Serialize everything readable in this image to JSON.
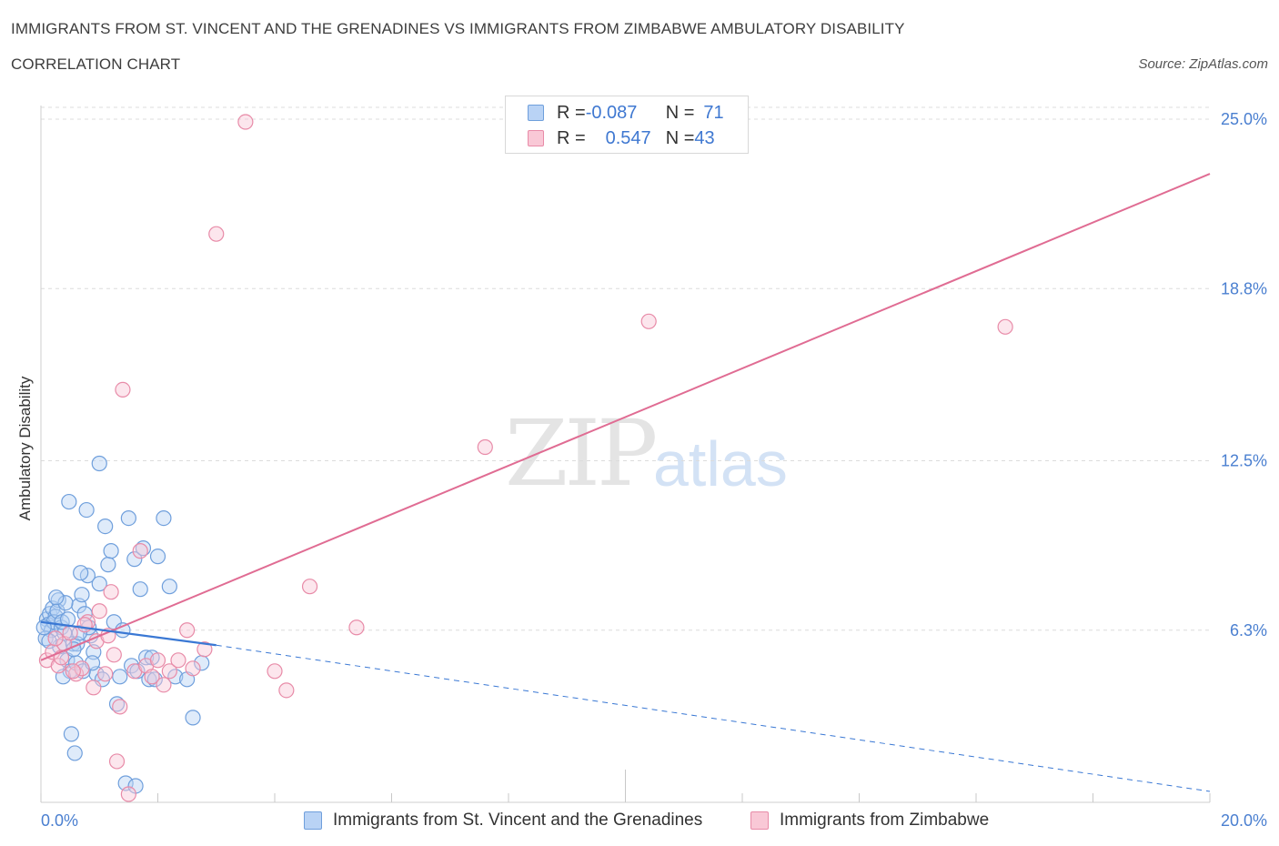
{
  "title_line1": "IMMIGRANTS FROM ST. VINCENT AND THE GRENADINES VS IMMIGRANTS FROM ZIMBABWE AMBULATORY DISABILITY",
  "title_line2": "CORRELATION CHART",
  "source": "Source: ZipAtlas.com",
  "watermark_zip": "ZIP",
  "watermark_atlas": "atlas",
  "legend": {
    "row1": {
      "r_label": "R = ",
      "r_value": "-0.087",
      "n_label": "N = ",
      "n_value": "71"
    },
    "row2": {
      "r_label": "R = ",
      "r_value": "0.547",
      "n_label": "N = ",
      "n_value": "43"
    }
  },
  "bottom_legend": {
    "series1": "Immigrants from St. Vincent and the Grenadines",
    "series2": "Immigrants from Zimbabwe"
  },
  "colors": {
    "blue": "#6f9fdc",
    "blue_fill": "#b9d3f5",
    "blue_line": "#3a78d4",
    "pink": "#e88ba8",
    "pink_fill": "#f9c8d6",
    "pink_line": "#e06c93",
    "tick_text": "#4a7fd0"
  },
  "chart_data": {
    "type": "scatter",
    "title": "IMMIGRANTS FROM ST. VINCENT AND THE GRENADINES VS IMMIGRANTS FROM ZIMBABWE AMBULATORY DISABILITY CORRELATION CHART",
    "xlabel": "",
    "ylabel": "Ambulatory Disability",
    "xlim": [
      0,
      20
    ],
    "ylim": [
      0,
      25.5
    ],
    "x_tick_labels": [
      "0.0%",
      "20.0%"
    ],
    "y_ticks": [
      6.3,
      12.5,
      18.8,
      25.0
    ],
    "y_tick_labels": [
      "6.3%",
      "12.5%",
      "18.8%",
      "25.0%"
    ],
    "grid": true,
    "legend_position": "top-center",
    "series": [
      {
        "name": "Immigrants from St. Vincent and the Grenadines",
        "color": "#6f9fdc",
        "R": -0.087,
        "N": 71,
        "trend": {
          "x": [
            0,
            3.0
          ],
          "y": [
            6.6,
            5.75
          ],
          "dashed_extension": {
            "x": [
              3.0,
              20
            ],
            "y": [
              5.75,
              0.4
            ]
          }
        },
        "points": [
          [
            0.1,
            6.7
          ],
          [
            0.15,
            6.9
          ],
          [
            0.2,
            7.1
          ],
          [
            0.12,
            6.5
          ],
          [
            0.25,
            6.8
          ],
          [
            0.3,
            7.4
          ],
          [
            0.18,
            6.3
          ],
          [
            0.22,
            6.6
          ],
          [
            0.35,
            6.4
          ],
          [
            0.28,
            7.0
          ],
          [
            0.4,
            6.2
          ],
          [
            0.08,
            6.0
          ],
          [
            0.32,
            5.7
          ],
          [
            0.45,
            5.2
          ],
          [
            0.5,
            4.8
          ],
          [
            0.38,
            4.6
          ],
          [
            0.6,
            5.1
          ],
          [
            0.55,
            5.8
          ],
          [
            0.65,
            7.2
          ],
          [
            0.7,
            7.6
          ],
          [
            0.75,
            6.9
          ],
          [
            0.8,
            8.3
          ],
          [
            0.85,
            6.1
          ],
          [
            0.9,
            5.5
          ],
          [
            0.95,
            4.7
          ],
          [
            1.0,
            8.0
          ],
          [
            1.05,
            4.5
          ],
          [
            1.1,
            10.1
          ],
          [
            1.15,
            8.7
          ],
          [
            1.2,
            9.2
          ],
          [
            1.25,
            6.6
          ],
          [
            1.3,
            3.6
          ],
          [
            1.35,
            4.6
          ],
          [
            1.4,
            6.3
          ],
          [
            1.5,
            10.4
          ],
          [
            1.55,
            5.0
          ],
          [
            1.6,
            8.9
          ],
          [
            1.65,
            4.8
          ],
          [
            1.7,
            7.8
          ],
          [
            1.75,
            9.3
          ],
          [
            1.8,
            5.3
          ],
          [
            1.85,
            4.5
          ],
          [
            1.9,
            5.3
          ],
          [
            1.95,
            4.5
          ],
          [
            2.0,
            9.0
          ],
          [
            2.1,
            10.4
          ],
          [
            2.2,
            7.9
          ],
          [
            2.3,
            4.6
          ],
          [
            0.42,
            7.3
          ],
          [
            0.48,
            11.0
          ],
          [
            0.52,
            2.5
          ],
          [
            0.58,
            1.8
          ],
          [
            0.62,
            5.8
          ],
          [
            0.68,
            8.4
          ],
          [
            0.72,
            4.8
          ],
          [
            0.78,
            10.7
          ],
          [
            0.82,
            6.4
          ],
          [
            0.88,
            5.1
          ],
          [
            1.0,
            12.4
          ],
          [
            1.45,
            0.7
          ],
          [
            1.62,
            0.6
          ],
          [
            2.5,
            4.5
          ],
          [
            2.6,
            3.1
          ],
          [
            2.75,
            5.1
          ],
          [
            0.05,
            6.4
          ],
          [
            0.14,
            5.9
          ],
          [
            0.26,
            7.5
          ],
          [
            0.36,
            6.6
          ],
          [
            0.46,
            6.7
          ],
          [
            0.56,
            5.6
          ],
          [
            0.66,
            6.2
          ]
        ]
      },
      {
        "name": "Immigrants from Zimbabwe",
        "color": "#e88ba8",
        "R": 0.547,
        "N": 43,
        "trend": {
          "x": [
            0,
            20
          ],
          "y": [
            5.2,
            23.0
          ]
        },
        "points": [
          [
            0.1,
            5.2
          ],
          [
            0.2,
            5.5
          ],
          [
            0.3,
            5.0
          ],
          [
            0.4,
            5.8
          ],
          [
            0.5,
            6.2
          ],
          [
            0.6,
            4.7
          ],
          [
            0.7,
            4.9
          ],
          [
            0.8,
            6.6
          ],
          [
            0.9,
            4.2
          ],
          [
            1.0,
            7.0
          ],
          [
            1.1,
            4.7
          ],
          [
            1.2,
            7.7
          ],
          [
            1.3,
            1.5
          ],
          [
            1.35,
            3.5
          ],
          [
            1.4,
            15.1
          ],
          [
            1.5,
            0.3
          ],
          [
            1.6,
            4.8
          ],
          [
            1.7,
            9.2
          ],
          [
            1.8,
            5.0
          ],
          [
            1.9,
            4.6
          ],
          [
            2.0,
            5.2
          ],
          [
            2.1,
            4.3
          ],
          [
            2.2,
            4.8
          ],
          [
            2.35,
            5.2
          ],
          [
            2.5,
            6.3
          ],
          [
            2.6,
            4.9
          ],
          [
            2.8,
            5.6
          ],
          [
            3.0,
            20.8
          ],
          [
            3.5,
            24.9
          ],
          [
            4.0,
            4.8
          ],
          [
            4.2,
            4.1
          ],
          [
            4.6,
            7.9
          ],
          [
            5.4,
            6.4
          ],
          [
            7.6,
            13.0
          ],
          [
            10.4,
            17.6
          ],
          [
            16.5,
            17.4
          ],
          [
            0.25,
            6.0
          ],
          [
            0.35,
            5.3
          ],
          [
            0.55,
            4.8
          ],
          [
            0.75,
            6.5
          ],
          [
            0.95,
            5.9
          ],
          [
            1.15,
            6.1
          ],
          [
            1.25,
            5.4
          ]
        ]
      }
    ]
  }
}
